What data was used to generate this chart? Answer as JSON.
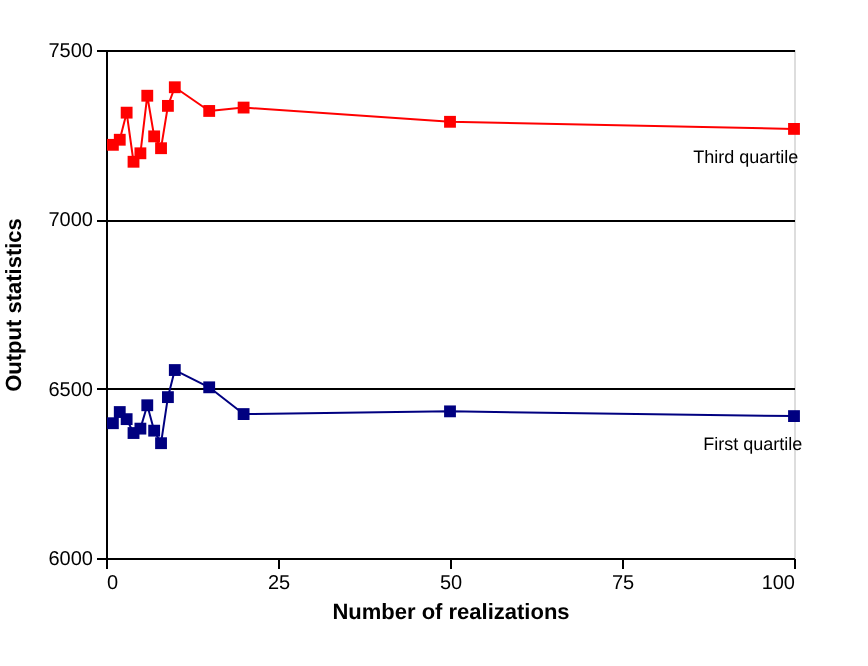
{
  "chart_data": {
    "type": "line",
    "xlabel": "Number of realizations",
    "ylabel": "Output statistics",
    "xlim": [
      0,
      100
    ],
    "xticks": [
      0,
      25,
      50,
      75,
      100
    ],
    "ylim": [
      6000,
      7500
    ],
    "yticks": [
      6000,
      6500,
      7000,
      7500
    ],
    "grid": "y",
    "marker": "square",
    "line_style": "solid",
    "series": [
      {
        "x": [
          1,
          2,
          3,
          4,
          5,
          6,
          7,
          8,
          9,
          10,
          15,
          20,
          50,
          100
        ],
        "color": "#ff0000",
        "values": [
          7220,
          7235,
          7315,
          7170,
          7195,
          7365,
          7245,
          7210,
          7335,
          7390,
          7320,
          7330,
          7288,
          7267
        ]
      },
      {
        "x": [
          1,
          2,
          3,
          4,
          5,
          6,
          7,
          8,
          9,
          10,
          15,
          20,
          50,
          100
        ],
        "color": "#000080",
        "values": [
          6398,
          6431,
          6410,
          6369,
          6382,
          6451,
          6376,
          6339,
          6475,
          6555,
          6504,
          6425,
          6433,
          6419
        ]
      }
    ],
    "annotations": [
      {
        "text": "Third quartile",
        "x": 93,
        "y": 7267
      },
      {
        "text": "First quartile",
        "x": 94,
        "y": 6419
      }
    ]
  }
}
